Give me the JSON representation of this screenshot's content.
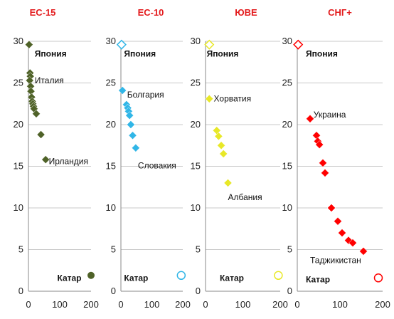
{
  "chart_data": [
    {
      "type": "scatter",
      "title": "ЕС-15",
      "xlim": [
        0,
        200
      ],
      "ylim": [
        0,
        30
      ],
      "xticks": [
        "0",
        "100",
        "200"
      ],
      "yticks": [
        "0",
        "5",
        "10",
        "15",
        "20",
        "25",
        "30"
      ],
      "grid": true,
      "marker_color": "#4f6228",
      "points": [
        {
          "x": 2,
          "y": 29.6
        },
        {
          "x": 5,
          "y": 26.2
        },
        {
          "x": 6,
          "y": 25.8
        },
        {
          "x": 4,
          "y": 25.3
        },
        {
          "x": 7,
          "y": 24.6
        },
        {
          "x": 8,
          "y": 24.0
        },
        {
          "x": 10,
          "y": 23.3
        },
        {
          "x": 12,
          "y": 22.8
        },
        {
          "x": 14,
          "y": 22.5
        },
        {
          "x": 16,
          "y": 22.2
        },
        {
          "x": 18,
          "y": 21.9
        },
        {
          "x": 25,
          "y": 21.3
        },
        {
          "x": 40,
          "y": 18.8
        },
        {
          "x": 55,
          "y": 15.8
        },
        {
          "x": 200,
          "y": 1.9
        }
      ],
      "annotations": [
        {
          "text": "Япония",
          "x": 20,
          "y": 28.5,
          "bold": true
        },
        {
          "text": "Италия",
          "x": 20,
          "y": 25.3,
          "bold": false
        },
        {
          "text": "Ирландия",
          "x": 65,
          "y": 15.6,
          "bold": false
        },
        {
          "text": "Катар",
          "x": 92,
          "y": 1.6,
          "bold": true
        }
      ]
    },
    {
      "type": "scatter",
      "title": "ЕС-10",
      "xlim": [
        0,
        200
      ],
      "ylim": [
        0,
        30
      ],
      "xticks": [
        "0",
        "100",
        "200"
      ],
      "yticks": [
        "0",
        "5",
        "10",
        "15",
        "20",
        "25",
        "30"
      ],
      "grid": true,
      "marker_color": "#31b6e7",
      "points": [
        {
          "x": 2,
          "y": 29.6,
          "hollow": true
        },
        {
          "x": 5,
          "y": 24.1
        },
        {
          "x": 18,
          "y": 22.4
        },
        {
          "x": 22,
          "y": 22.0
        },
        {
          "x": 25,
          "y": 21.6
        },
        {
          "x": 28,
          "y": 21.1
        },
        {
          "x": 32,
          "y": 20.0
        },
        {
          "x": 38,
          "y": 18.7
        },
        {
          "x": 48,
          "y": 17.2
        },
        {
          "x": 195,
          "y": 1.9,
          "hollow": true
        }
      ],
      "annotations": [
        {
          "text": "Япония",
          "x": 10,
          "y": 28.5,
          "bold": true
        },
        {
          "text": "Болгария",
          "x": 20,
          "y": 23.6,
          "bold": false
        },
        {
          "text": "Словакия",
          "x": 55,
          "y": 15.1,
          "bold": false
        },
        {
          "text": "Катар",
          "x": 10,
          "y": 1.6,
          "bold": true
        }
      ]
    },
    {
      "type": "scatter",
      "title": "ЮВЕ",
      "xlim": [
        0,
        200
      ],
      "ylim": [
        0,
        30
      ],
      "xticks": [
        "0",
        "100",
        "200"
      ],
      "yticks": [
        "0",
        "5",
        "10",
        "15",
        "20",
        "25",
        "30"
      ],
      "grid": true,
      "marker_color": "#e8e828",
      "points": [
        {
          "x": 10,
          "y": 29.6,
          "hollow": true
        },
        {
          "x": 10,
          "y": 23.1
        },
        {
          "x": 30,
          "y": 19.3
        },
        {
          "x": 35,
          "y": 18.6
        },
        {
          "x": 42,
          "y": 17.5
        },
        {
          "x": 48,
          "y": 16.5
        },
        {
          "x": 60,
          "y": 13.0
        },
        {
          "x": 195,
          "y": 1.9,
          "hollow": true
        }
      ],
      "annotations": [
        {
          "text": "Япония",
          "x": 3,
          "y": 28.5,
          "bold": true
        },
        {
          "text": "Хорватия",
          "x": 22,
          "y": 23.1,
          "bold": false
        },
        {
          "text": "Албания",
          "x": 60,
          "y": 11.3,
          "bold": false
        },
        {
          "text": "Катар",
          "x": 38,
          "y": 1.6,
          "bold": true
        }
      ]
    },
    {
      "type": "scatter",
      "title": "СНГ+",
      "xlim": [
        0,
        200
      ],
      "ylim": [
        0,
        30
      ],
      "xticks": [
        "0",
        "100",
        "200"
      ],
      "yticks": [
        "0",
        "5",
        "10",
        "15",
        "20",
        "25",
        "30"
      ],
      "grid": true,
      "marker_color": "#ff0000",
      "points": [
        {
          "x": 2,
          "y": 29.6,
          "hollow": true
        },
        {
          "x": 30,
          "y": 20.7
        },
        {
          "x": 45,
          "y": 18.7
        },
        {
          "x": 48,
          "y": 18.0
        },
        {
          "x": 52,
          "y": 17.6
        },
        {
          "x": 60,
          "y": 15.4
        },
        {
          "x": 65,
          "y": 14.2
        },
        {
          "x": 80,
          "y": 10.0
        },
        {
          "x": 95,
          "y": 8.4
        },
        {
          "x": 105,
          "y": 7.0
        },
        {
          "x": 120,
          "y": 6.1
        },
        {
          "x": 130,
          "y": 5.8
        },
        {
          "x": 155,
          "y": 4.8
        },
        {
          "x": 190,
          "y": 1.6,
          "hollow": true
        }
      ],
      "annotations": [
        {
          "text": "Япония",
          "x": 20,
          "y": 28.5,
          "bold": true
        },
        {
          "text": "Украина",
          "x": 38,
          "y": 21.2,
          "bold": false
        },
        {
          "text": "Таджикистан",
          "x": 30,
          "y": 3.7,
          "bold": false
        },
        {
          "text": "Катар",
          "x": 20,
          "y": 1.4,
          "bold": true
        }
      ]
    }
  ]
}
